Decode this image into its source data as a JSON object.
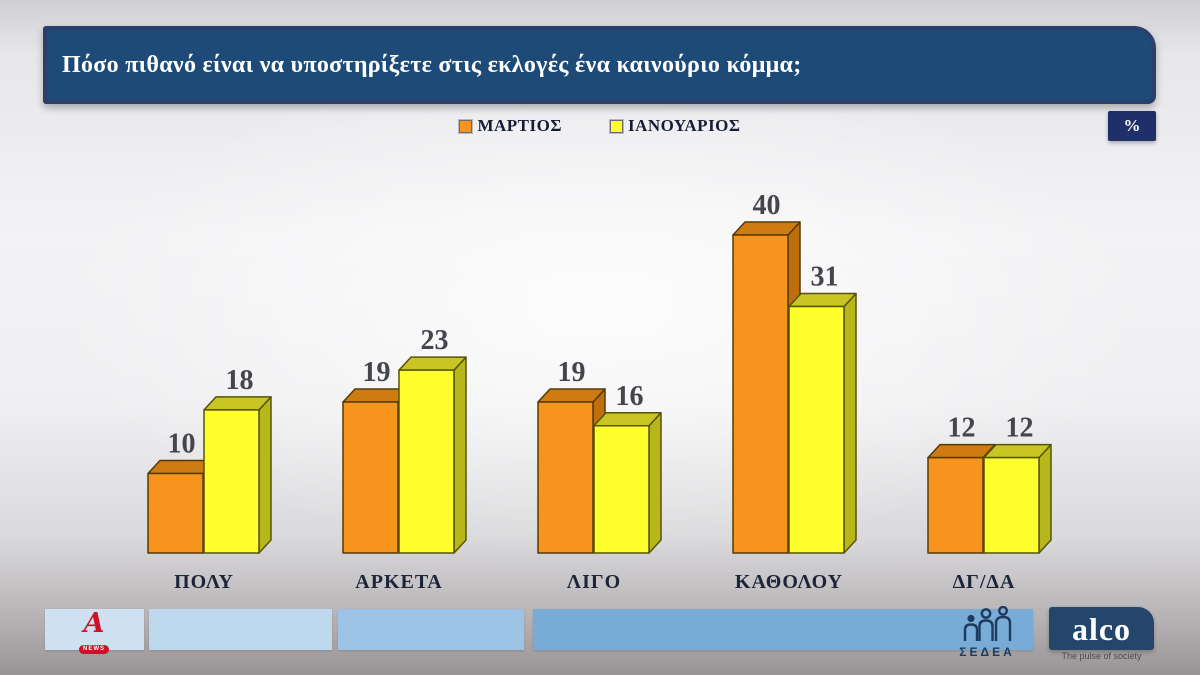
{
  "title": {
    "text": "Πόσο πιθανό είναι να υποστηρίξετε στις εκλογές ένα καινούριο κόμμα;"
  },
  "unit_badge": "%",
  "colors": {
    "title_bg": "#1d4a76",
    "badge_bg": "#1f2f69",
    "footer_blocks": [
      "#cfe0f1",
      "#bed8ee",
      "#9dc3e6",
      "#79abd7"
    ],
    "alpha_red": "#ce1126",
    "alco_navy": "#24466b",
    "sedea_navy": "#1d3a5f"
  },
  "chart_data": {
    "type": "bar",
    "title": "Πόσο πιθανό είναι να υποστηρίξετε στις εκλογές ένα καινούριο κόμμα;",
    "unit": "%",
    "categories": [
      "ΠΟΛΥ",
      "ΑΡΚΕΤΑ",
      "ΛΙΓΟ",
      "ΚΑΘΟΛΟΥ",
      "ΔΓ/ΔΑ"
    ],
    "series": [
      {
        "name": "ΜΑΡΤΙΟΣ",
        "values": [
          10,
          19,
          19,
          40,
          12
        ],
        "colors": {
          "front": "#F7941E",
          "top": "#CE7B12",
          "side": "#BE6F0C",
          "outline": "#553a06"
        }
      },
      {
        "name": "ΙΑΝΟΥΑΡΙΟΣ",
        "values": [
          18,
          23,
          16,
          31,
          12
        ],
        "colors": {
          "front": "#FFFF2E",
          "top": "#C9C522",
          "side": "#B7B61B",
          "outline": "#56530a"
        }
      }
    ],
    "ylim": [
      0,
      45
    ],
    "grid": false,
    "legend_position": "top",
    "bar_style": "3d",
    "value_labels": "above-bars"
  },
  "footer": {
    "alpha": {
      "letter": "A",
      "badge": "NEWS"
    },
    "sedea": {
      "label": "ΣΕΔΕΑ"
    },
    "alco": {
      "name": "alco",
      "tagline": "The pulse of society"
    }
  }
}
